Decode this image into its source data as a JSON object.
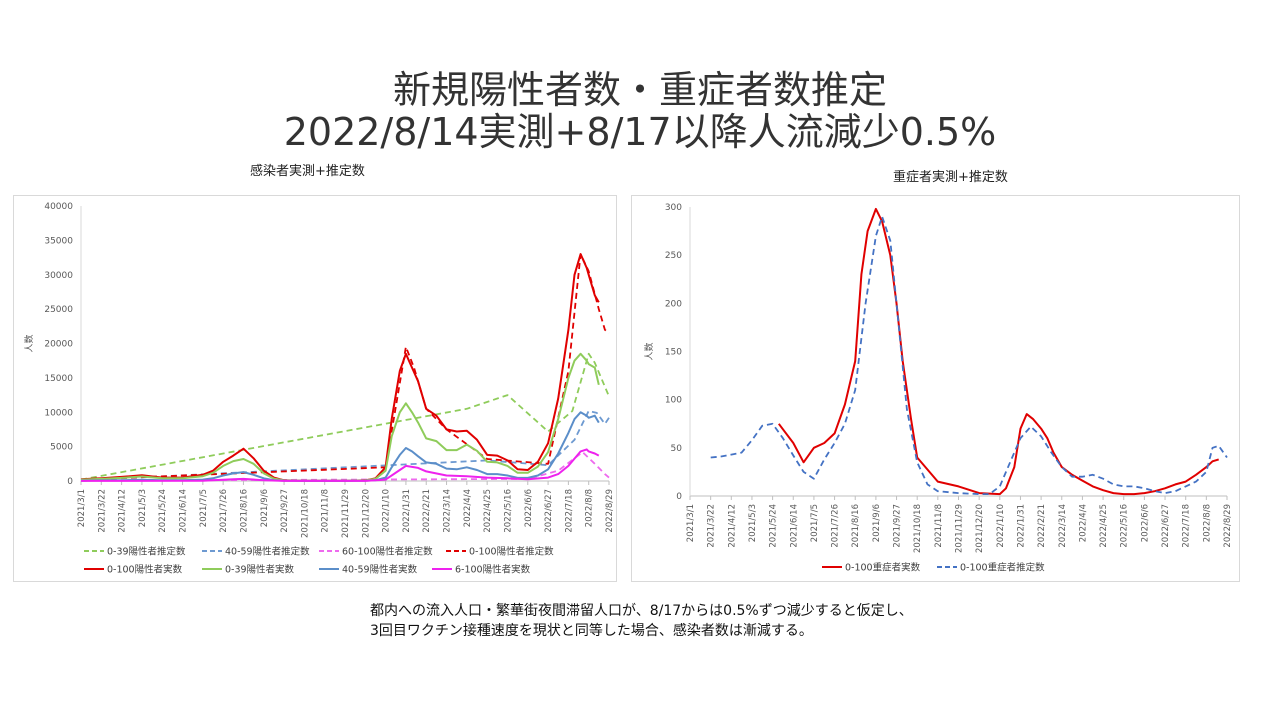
{
  "title_line1": "新規陽性者数・重症者数推定",
  "title_line2": "2022/8/14実測+8/17以降人流減少0.5%",
  "note_line1": "都内への流入人口・繁華街夜間滞留人口が、8/17からは0.5%ずつ減少すると仮定し、",
  "note_line2": "3回目ワクチン接種速度を現状と同等した場合、感染者数は漸減する。",
  "chart_data": [
    {
      "type": "line",
      "title": "感染者実測+推定数",
      "ylabel": "人数",
      "ylim": [
        0,
        40000
      ],
      "yticks": [
        "0",
        "5000",
        "10000",
        "15000",
        "20000",
        "25000",
        "30000",
        "35000",
        "40000"
      ],
      "categories": [
        "2021/3/1",
        "2021/3/22",
        "2021/4/12",
        "2021/5/3",
        "2021/5/24",
        "2021/6/14",
        "2021/7/5",
        "2021/7/26",
        "2021/8/16",
        "2021/9/6",
        "2021/9/27",
        "2021/10/18",
        "2021/11/8",
        "2021/11/29",
        "2021/12/20",
        "2022/1/10",
        "2022/1/31",
        "2022/2/21",
        "2022/3/14",
        "2022/4/4",
        "2022/4/25",
        "2022/5/16",
        "2022/6/6",
        "2022/6/27",
        "2022/7/18",
        "2022/8/8",
        "2022/8/29"
      ],
      "grid": false,
      "legend_position": "bottom",
      "series": [
        {
          "name": "0-39陽性者推定数",
          "color": "#8fcc5b",
          "dash": true,
          "x": [
            0,
            19,
            21,
            23,
            24.2,
            25,
            25.3,
            26
          ],
          "values": [
            200,
            10500,
            12500,
            7200,
            10200,
            18500,
            17200,
            12300
          ]
        },
        {
          "name": "40-59陽性者推定数",
          "color": "#6e9ad1",
          "dash": true,
          "x": [
            0,
            20,
            23,
            24.3,
            25,
            25.4,
            25.8,
            26
          ],
          "values": [
            100,
            3000,
            2300,
            6000,
            10200,
            9900,
            8300,
            9200
          ]
        },
        {
          "name": "60-100陽性者推定数",
          "color": "#ee6aee",
          "dash": true,
          "x": [
            0,
            22,
            23.5,
            24.7,
            25.3,
            25.8,
            26
          ],
          "values": [
            50,
            300,
            1500,
            4200,
            2500,
            1000,
            500
          ]
        },
        {
          "name": "0-100陽性者推定数",
          "color": "#e00000",
          "dash": true,
          "x": [
            0,
            15,
            16,
            16.4,
            17,
            18,
            20,
            23,
            24,
            24.6,
            25,
            25.5,
            25.8,
            26
          ],
          "values": [
            200,
            2000,
            19500,
            16500,
            10500,
            7500,
            3200,
            2500,
            16000,
            33000,
            30500,
            25000,
            22000,
            21500
          ]
        },
        {
          "name": "0-100陽性者実数",
          "color": "#e00000",
          "dash": false,
          "x": [
            0,
            1,
            2,
            3,
            4,
            5,
            6,
            6.5,
            7,
            7.5,
            8,
            8.5,
            9,
            9.5,
            10,
            11,
            12,
            13,
            14,
            14.5,
            15,
            15.3,
            15.7,
            16,
            16.3,
            16.6,
            17,
            17.5,
            18,
            18.5,
            19,
            19.5,
            20,
            20.5,
            21,
            21.5,
            22,
            22.5,
            23,
            23.5,
            24,
            24.3,
            24.6,
            24.9,
            25,
            25.3,
            25.5
          ],
          "values": [
            250,
            400,
            600,
            850,
            500,
            500,
            900,
            1500,
            2800,
            3700,
            4700,
            3300,
            1500,
            500,
            100,
            50,
            50,
            50,
            100,
            400,
            2000,
            9000,
            16000,
            18500,
            16500,
            14500,
            10500,
            9500,
            7500,
            7200,
            7300,
            6000,
            3800,
            3700,
            3000,
            1700,
            1600,
            2800,
            5500,
            12000,
            22000,
            30000,
            33000,
            31000,
            30000,
            27000,
            26000
          ]
        },
        {
          "name": "0-39陽性者実数",
          "color": "#8fcc5b",
          "dash": false,
          "x": [
            0,
            1,
            2,
            3,
            4,
            5,
            6,
            6.5,
            7,
            7.5,
            8,
            8.5,
            9,
            9.5,
            10,
            11,
            12,
            13,
            14,
            14.5,
            15,
            15.3,
            15.7,
            16,
            16.3,
            16.6,
            17,
            17.5,
            18,
            18.5,
            19,
            19.5,
            20,
            20.5,
            21,
            21.5,
            22,
            22.5,
            23,
            23.5,
            24,
            24.3,
            24.6,
            24.9,
            25,
            25.3,
            25.5
          ],
          "values": [
            200,
            300,
            450,
            650,
            400,
            400,
            700,
            1200,
            2200,
            2900,
            3200,
            2500,
            1100,
            350,
            80,
            40,
            40,
            40,
            80,
            300,
            1500,
            6500,
            10000,
            11300,
            10000,
            8500,
            6200,
            5800,
            4500,
            4500,
            5300,
            4400,
            2800,
            2700,
            2200,
            1200,
            1200,
            2100,
            4200,
            9000,
            15000,
            17500,
            18500,
            17500,
            17000,
            16500,
            14000
          ]
        },
        {
          "name": "40-59陽性者実数",
          "color": "#5b8ec9",
          "dash": false,
          "x": [
            0,
            1,
            2,
            3,
            4,
            5,
            6,
            6.5,
            7,
            7.5,
            8,
            8.5,
            9,
            9.5,
            10,
            11,
            12,
            13,
            14,
            14.5,
            15,
            15.3,
            15.7,
            16,
            16.3,
            16.6,
            17,
            17.5,
            18,
            18.5,
            19,
            19.5,
            20,
            20.5,
            21,
            21.5,
            22,
            22.5,
            23,
            23.5,
            24,
            24.3,
            24.6,
            24.9,
            25,
            25.3,
            25.5
          ],
          "values": [
            50,
            80,
            120,
            180,
            120,
            120,
            200,
            400,
            800,
            1100,
            1300,
            900,
            400,
            120,
            30,
            15,
            15,
            15,
            30,
            100,
            500,
            2000,
            3800,
            4800,
            4300,
            3600,
            2700,
            2500,
            1800,
            1700,
            2000,
            1600,
            1000,
            1000,
            800,
            450,
            450,
            800,
            1700,
            4000,
            7000,
            9000,
            10000,
            9500,
            9200,
            9500,
            8500
          ]
        },
        {
          "name": "6-100陽性者実数",
          "color": "#ee22ee",
          "dash": false,
          "x": [
            0,
            6,
            7.5,
            8,
            9,
            10,
            14,
            15,
            15.7,
            16,
            16.6,
            17,
            18,
            19,
            20,
            21,
            22,
            23,
            23.5,
            24,
            24.6,
            24.9,
            25,
            25.3,
            25.5
          ],
          "values": [
            20,
            50,
            250,
            300,
            120,
            20,
            10,
            200,
            1600,
            2200,
            1900,
            1400,
            800,
            700,
            500,
            400,
            250,
            500,
            1000,
            2200,
            4300,
            4600,
            4300,
            4000,
            3700
          ]
        }
      ]
    },
    {
      "type": "line",
      "title": "重症者実測+推定数",
      "ylabel": "人数",
      "ylim": [
        0,
        300
      ],
      "yticks": [
        "0",
        "50",
        "100",
        "150",
        "200",
        "250",
        "300"
      ],
      "categories": [
        "2021/3/1",
        "2021/3/22",
        "2021/4/12",
        "2021/5/3",
        "2021/5/24",
        "2021/6/14",
        "2021/7/5",
        "2021/7/26",
        "2021/8/16",
        "2021/9/6",
        "2021/9/27",
        "2021/10/18",
        "2021/11/8",
        "2021/11/29",
        "2021/12/20",
        "2022/1/10",
        "2022/1/31",
        "2022/2/21",
        "2022/3/14",
        "2022/4/4",
        "2022/4/25",
        "2022/5/16",
        "2022/6/6",
        "2022/6/27",
        "2022/7/18",
        "2022/8/8",
        "2022/8/29"
      ],
      "grid": false,
      "legend_position": "bottom",
      "series": [
        {
          "name": "0-100重症者実数",
          "color": "#e00000",
          "dash": false,
          "x": [
            4.3,
            5,
            5.5,
            6,
            6.5,
            7,
            7.5,
            8,
            8.3,
            8.6,
            9,
            9.3,
            9.7,
            10,
            10.3,
            10.7,
            11,
            12,
            13,
            14,
            15,
            15.3,
            15.7,
            16,
            16.3,
            16.6,
            17,
            17.3,
            17.6,
            18,
            18.5,
            19,
            19.5,
            20,
            20.5,
            21,
            21.5,
            22,
            22.5,
            23,
            23.5,
            24,
            24.5,
            25,
            25.3,
            25.6
          ],
          "values": [
            75,
            55,
            35,
            50,
            55,
            65,
            95,
            140,
            230,
            275,
            298,
            285,
            250,
            200,
            140,
            80,
            40,
            15,
            10,
            3,
            2,
            8,
            30,
            70,
            85,
            80,
            70,
            60,
            45,
            30,
            22,
            16,
            10,
            6,
            3,
            2,
            2,
            3,
            5,
            8,
            12,
            15,
            22,
            30,
            36,
            38
          ]
        },
        {
          "name": "0-100重症者推定数",
          "color": "#4472c4",
          "dash": true,
          "x": [
            1,
            1.5,
            2,
            2.5,
            3,
            3.5,
            4,
            4.5,
            5,
            5.5,
            6,
            6.5,
            7,
            7.5,
            8,
            8.5,
            9,
            9.3,
            9.7,
            10,
            10.5,
            11,
            11.5,
            12,
            13,
            14,
            14.5,
            15,
            15.5,
            16,
            16.5,
            17,
            17.5,
            18,
            18.5,
            19,
            19.5,
            20,
            20.5,
            21,
            21.5,
            22,
            22.5,
            23,
            23.5,
            24,
            24.5,
            25,
            25.3,
            25.6,
            26
          ],
          "values": [
            40,
            41,
            43,
            45,
            58,
            73,
            75,
            60,
            42,
            25,
            18,
            38,
            55,
            75,
            110,
            200,
            270,
            290,
            265,
            200,
            90,
            35,
            12,
            5,
            3,
            2,
            2,
            10,
            35,
            60,
            72,
            62,
            45,
            30,
            20,
            20,
            22,
            18,
            12,
            10,
            10,
            8,
            5,
            3,
            5,
            10,
            15,
            25,
            50,
            52,
            40
          ]
        }
      ]
    }
  ]
}
